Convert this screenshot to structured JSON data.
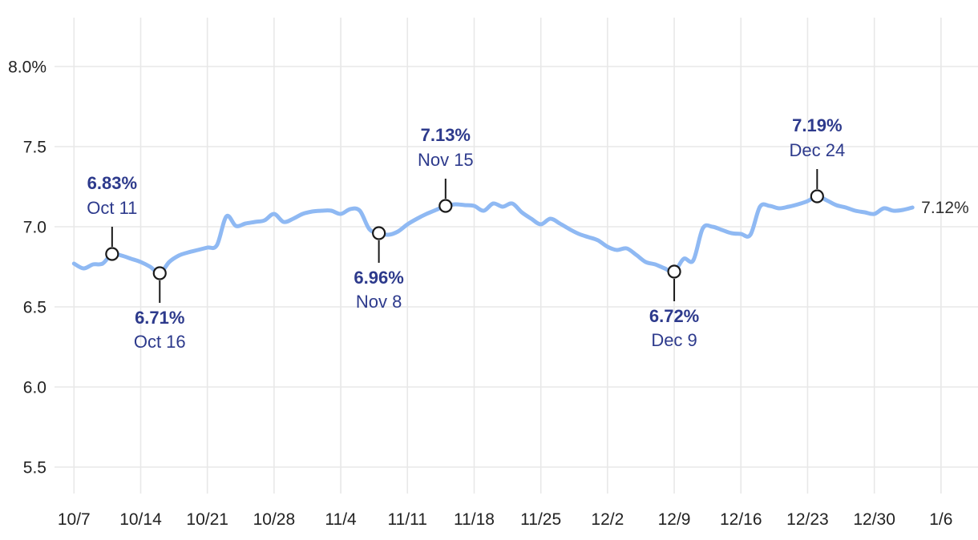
{
  "chart_data": {
    "type": "line",
    "x_start": "10/7",
    "x_interval": "daily",
    "x_domain_days": [
      0,
      91
    ],
    "values": [
      6.77,
      6.74,
      6.765,
      6.77,
      6.83,
      6.82,
      6.8,
      6.78,
      6.75,
      6.71,
      6.78,
      6.82,
      6.84,
      6.855,
      6.87,
      6.885,
      7.065,
      7.005,
      7.02,
      7.03,
      7.04,
      7.08,
      7.03,
      7.05,
      7.08,
      7.095,
      7.1,
      7.1,
      7.08,
      7.11,
      7.1,
      6.985,
      6.96,
      6.95,
      6.97,
      7.015,
      7.05,
      7.08,
      7.105,
      7.13,
      7.14,
      7.135,
      7.13,
      7.1,
      7.145,
      7.125,
      7.145,
      7.09,
      7.05,
      7.015,
      7.05,
      7.02,
      6.985,
      6.955,
      6.935,
      6.915,
      6.875,
      6.855,
      6.865,
      6.825,
      6.78,
      6.765,
      6.74,
      6.72,
      6.8,
      6.79,
      6.99,
      7.0,
      6.98,
      6.96,
      6.955,
      6.95,
      7.125,
      7.13,
      7.115,
      7.125,
      7.14,
      7.16,
      7.19,
      7.165,
      7.135,
      7.12,
      7.1,
      7.09,
      7.08,
      7.115,
      7.1,
      7.105,
      7.12
    ],
    "x_tick_labels": [
      "10/7",
      "10/14",
      "10/21",
      "10/28",
      "11/4",
      "11/11",
      "11/18",
      "11/25",
      "12/2",
      "12/9",
      "12/16",
      "12/23",
      "12/30",
      "1/6"
    ],
    "x_tick_day_offsets": [
      0,
      7,
      14,
      21,
      28,
      35,
      42,
      49,
      56,
      63,
      70,
      77,
      84,
      91
    ],
    "y_ticks": [
      {
        "label": "8.0%",
        "value": 8.0
      },
      {
        "label": "7.5",
        "value": 7.5
      },
      {
        "label": "7.0",
        "value": 7.0
      },
      {
        "label": "6.5",
        "value": 6.5
      },
      {
        "label": "6.0",
        "value": 6.0
      },
      {
        "label": "5.5",
        "value": 5.5
      }
    ],
    "ylim": [
      5.3,
      8.3
    ],
    "grid": true,
    "annotations": [
      {
        "label": "6.83%",
        "date": "Oct 11",
        "day": 4,
        "value": 6.83,
        "direction": "up"
      },
      {
        "label": "6.71%",
        "date": "Oct 16",
        "day": 9,
        "value": 6.71,
        "direction": "down"
      },
      {
        "label": "6.96%",
        "date": "Nov 8",
        "day": 32,
        "value": 6.96,
        "direction": "down"
      },
      {
        "label": "7.13%",
        "date": "Nov 15",
        "day": 39,
        "value": 7.13,
        "direction": "up"
      },
      {
        "label": "6.72%",
        "date": "Dec 9",
        "day": 63,
        "value": 6.72,
        "direction": "down"
      },
      {
        "label": "7.19%",
        "date": "Dec 24",
        "day": 78,
        "value": 7.19,
        "direction": "up"
      }
    ],
    "end_label": {
      "text": "7.12%",
      "value": 7.12
    },
    "colors": {
      "line": "#8FB9F3",
      "grid": "#e8e8e8",
      "axis_text": "#222222",
      "annotation_text": "#2D3A8C",
      "marker_fill": "#ffffff",
      "marker_stroke": "#1a1a1a",
      "leader_line": "#1a1a1a",
      "end_label_text": "#2e2e2e",
      "background": "#ffffff"
    }
  }
}
